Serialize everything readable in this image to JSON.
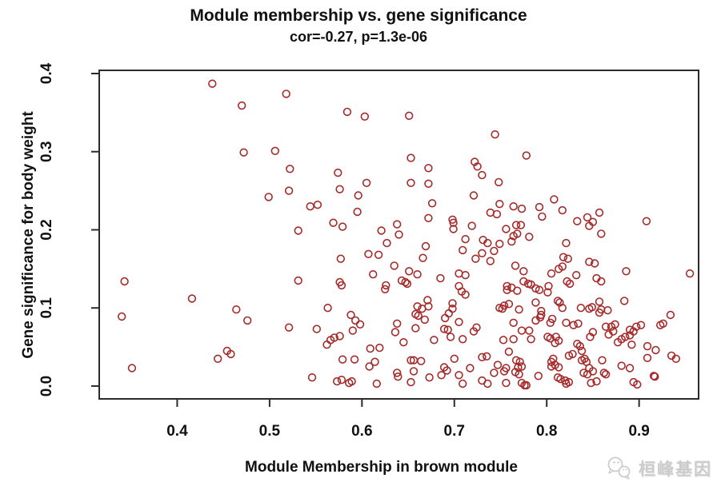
{
  "chart_data": {
    "type": "scatter",
    "title": "Module membership vs. gene significance",
    "subtitle": "cor=-0.27, p=1.3e-06",
    "xlabel": "Module Membership in brown module",
    "ylabel": "Gene significance for body weight",
    "x_ticks": [
      "0.4",
      "0.5",
      "0.6",
      "0.7",
      "0.8",
      "0.9"
    ],
    "y_ticks": [
      "0.0",
      "0.1",
      "0.2",
      "0.3",
      "0.4"
    ],
    "x_tick_values": [
      0.4,
      0.5,
      0.6,
      0.7,
      0.8,
      0.9
    ],
    "y_tick_values": [
      0.0,
      0.1,
      0.2,
      0.3,
      0.4
    ],
    "xlim": [
      0.3156,
      0.9644
    ],
    "ylim": [
      -0.0164,
      0.4041
    ],
    "grid": false,
    "legend": "none",
    "point_color": "#A52A2A",
    "axis_color": "#2b2b2b",
    "points": [
      [
        0.438,
        0.387
      ],
      [
        0.518,
        0.374
      ],
      [
        0.47,
        0.359
      ],
      [
        0.472,
        0.299
      ],
      [
        0.506,
        0.301
      ],
      [
        0.522,
        0.278
      ],
      [
        0.584,
        0.351
      ],
      [
        0.603,
        0.345
      ],
      [
        0.651,
        0.346
      ],
      [
        0.744,
        0.322
      ],
      [
        0.653,
        0.292
      ],
      [
        0.672,
        0.279
      ],
      [
        0.574,
        0.273
      ],
      [
        0.722,
        0.287
      ],
      [
        0.725,
        0.281
      ],
      [
        0.73,
        0.27
      ],
      [
        0.778,
        0.295
      ],
      [
        0.499,
        0.242
      ],
      [
        0.521,
        0.25
      ],
      [
        0.531,
        0.199
      ],
      [
        0.343,
        0.134
      ],
      [
        0.531,
        0.135
      ],
      [
        0.605,
        0.26
      ],
      [
        0.653,
        0.26
      ],
      [
        0.672,
        0.259
      ],
      [
        0.576,
        0.252
      ],
      [
        0.596,
        0.244
      ],
      [
        0.721,
        0.244
      ],
      [
        0.544,
        0.23
      ],
      [
        0.552,
        0.232
      ],
      [
        0.676,
        0.234
      ],
      [
        0.739,
        0.222
      ],
      [
        0.746,
        0.22
      ],
      [
        0.595,
        0.223
      ],
      [
        0.569,
        0.209
      ],
      [
        0.579,
        0.204
      ],
      [
        0.672,
        0.215
      ],
      [
        0.698,
        0.213
      ],
      [
        0.699,
        0.209
      ],
      [
        0.699,
        0.201
      ],
      [
        0.719,
        0.205
      ],
      [
        0.621,
        0.199
      ],
      [
        0.638,
        0.207
      ],
      [
        0.64,
        0.194
      ],
      [
        0.712,
        0.188
      ],
      [
        0.731,
        0.187
      ],
      [
        0.736,
        0.183
      ],
      [
        0.627,
        0.183
      ],
      [
        0.669,
        0.179
      ],
      [
        0.709,
        0.174
      ],
      [
        0.743,
        0.173
      ],
      [
        0.607,
        0.169
      ],
      [
        0.618,
        0.168
      ],
      [
        0.723,
        0.163
      ],
      [
        0.73,
        0.17
      ],
      [
        0.577,
        0.163
      ],
      [
        0.666,
        0.164
      ],
      [
        0.635,
        0.154
      ],
      [
        0.739,
        0.16
      ],
      [
        0.651,
        0.147
      ],
      [
        0.66,
        0.143
      ],
      [
        0.612,
        0.143
      ],
      [
        0.685,
        0.138
      ],
      [
        0.705,
        0.144
      ],
      [
        0.712,
        0.142
      ],
      [
        0.643,
        0.135
      ],
      [
        0.647,
        0.133
      ],
      [
        0.649,
        0.131
      ],
      [
        0.576,
        0.133
      ],
      [
        0.578,
        0.129
      ],
      [
        0.626,
        0.129
      ],
      [
        0.705,
        0.128
      ],
      [
        0.748,
        0.261
      ],
      [
        0.808,
        0.239
      ],
      [
        0.764,
        0.23
      ],
      [
        0.773,
        0.227
      ],
      [
        0.792,
        0.229
      ],
      [
        0.795,
        0.217
      ],
      [
        0.817,
        0.225
      ],
      [
        0.749,
        0.233
      ],
      [
        0.857,
        0.222
      ],
      [
        0.844,
        0.216
      ],
      [
        0.85,
        0.21
      ],
      [
        0.846,
        0.205
      ],
      [
        0.833,
        0.211
      ],
      [
        0.908,
        0.211
      ],
      [
        0.767,
        0.206
      ],
      [
        0.772,
        0.206
      ],
      [
        0.756,
        0.201
      ],
      [
        0.764,
        0.192
      ],
      [
        0.768,
        0.195
      ],
      [
        0.781,
        0.191
      ],
      [
        0.859,
        0.195
      ],
      [
        0.762,
        0.185
      ],
      [
        0.749,
        0.182
      ],
      [
        0.821,
        0.183
      ],
      [
        0.818,
        0.165
      ],
      [
        0.823,
        0.163
      ],
      [
        0.817,
        0.153
      ],
      [
        0.846,
        0.159
      ],
      [
        0.852,
        0.157
      ],
      [
        0.766,
        0.154
      ],
      [
        0.775,
        0.147
      ],
      [
        0.805,
        0.144
      ],
      [
        0.813,
        0.15
      ],
      [
        0.886,
        0.147
      ],
      [
        0.832,
        0.142
      ],
      [
        0.854,
        0.138
      ],
      [
        0.859,
        0.134
      ],
      [
        0.822,
        0.134
      ],
      [
        0.825,
        0.131
      ],
      [
        0.775,
        0.134
      ],
      [
        0.78,
        0.131
      ],
      [
        0.783,
        0.13
      ],
      [
        0.757,
        0.128
      ],
      [
        0.762,
        0.126
      ],
      [
        0.788,
        0.125
      ],
      [
        0.802,
        0.128
      ],
      [
        0.955,
        0.144
      ],
      [
        0.416,
        0.112
      ],
      [
        0.34,
        0.089
      ],
      [
        0.464,
        0.098
      ],
      [
        0.476,
        0.084
      ],
      [
        0.521,
        0.075
      ],
      [
        0.454,
        0.045
      ],
      [
        0.458,
        0.041
      ],
      [
        0.444,
        0.035
      ],
      [
        0.351,
        0.023
      ],
      [
        0.563,
        0.1
      ],
      [
        0.588,
        0.091
      ],
      [
        0.593,
        0.084
      ],
      [
        0.598,
        0.079
      ],
      [
        0.59,
        0.071
      ],
      [
        0.551,
        0.073
      ],
      [
        0.566,
        0.059
      ],
      [
        0.57,
        0.062
      ],
      [
        0.576,
        0.064
      ],
      [
        0.562,
        0.053
      ],
      [
        0.66,
        0.102
      ],
      [
        0.665,
        0.099
      ],
      [
        0.671,
        0.11
      ],
      [
        0.672,
        0.102
      ],
      [
        0.658,
        0.092
      ],
      [
        0.661,
        0.09
      ],
      [
        0.668,
        0.085
      ],
      [
        0.658,
        0.074
      ],
      [
        0.638,
        0.08
      ],
      [
        0.636,
        0.069
      ],
      [
        0.645,
        0.056
      ],
      [
        0.69,
        0.087
      ],
      [
        0.694,
        0.093
      ],
      [
        0.698,
        0.106
      ],
      [
        0.698,
        0.099
      ],
      [
        0.705,
        0.082
      ],
      [
        0.689,
        0.073
      ],
      [
        0.693,
        0.072
      ],
      [
        0.696,
        0.063
      ],
      [
        0.709,
        0.06
      ],
      [
        0.721,
        0.07
      ],
      [
        0.724,
        0.075
      ],
      [
        0.708,
        0.121
      ],
      [
        0.712,
        0.117
      ],
      [
        0.625,
        0.124
      ],
      [
        0.678,
        0.059
      ],
      [
        0.609,
        0.048
      ],
      [
        0.619,
        0.049
      ],
      [
        0.579,
        0.034
      ],
      [
        0.592,
        0.034
      ],
      [
        0.608,
        0.025
      ],
      [
        0.614,
        0.031
      ],
      [
        0.616,
        0.003
      ],
      [
        0.653,
        0.033
      ],
      [
        0.656,
        0.033
      ],
      [
        0.664,
        0.032
      ],
      [
        0.656,
        0.019
      ],
      [
        0.653,
        0.005
      ],
      [
        0.638,
        0.017
      ],
      [
        0.639,
        0.012
      ],
      [
        0.673,
        0.011
      ],
      [
        0.686,
        0.014
      ],
      [
        0.689,
        0.024
      ],
      [
        0.692,
        0.02
      ],
      [
        0.7,
        0.035
      ],
      [
        0.705,
        0.014
      ],
      [
        0.709,
        0.003
      ],
      [
        0.717,
        0.023
      ],
      [
        0.73,
        0.037
      ],
      [
        0.735,
        0.038
      ],
      [
        0.73,
        0.007
      ],
      [
        0.736,
        0.003
      ],
      [
        0.743,
        0.017
      ],
      [
        0.747,
        0.027
      ],
      [
        0.546,
        0.011
      ],
      [
        0.573,
        0.006
      ],
      [
        0.578,
        0.008
      ],
      [
        0.586,
        0.004
      ],
      [
        0.589,
        0.006
      ],
      [
        0.757,
        0.123
      ],
      [
        0.768,
        0.122
      ],
      [
        0.792,
        0.123
      ],
      [
        0.801,
        0.12
      ],
      [
        0.754,
        0.103
      ],
      [
        0.759,
        0.105
      ],
      [
        0.752,
        0.099
      ],
      [
        0.749,
        0.1
      ],
      [
        0.77,
        0.098
      ],
      [
        0.788,
        0.107
      ],
      [
        0.812,
        0.109
      ],
      [
        0.814,
        0.107
      ],
      [
        0.817,
        0.1
      ],
      [
        0.794,
        0.096
      ],
      [
        0.794,
        0.091
      ],
      [
        0.793,
        0.088
      ],
      [
        0.837,
        0.1
      ],
      [
        0.846,
        0.099
      ],
      [
        0.849,
        0.101
      ],
      [
        0.857,
        0.108
      ],
      [
        0.859,
        0.098
      ],
      [
        0.857,
        0.094
      ],
      [
        0.866,
        0.097
      ],
      [
        0.884,
        0.109
      ],
      [
        0.934,
        0.091
      ],
      [
        0.926,
        0.08
      ],
      [
        0.923,
        0.078
      ],
      [
        0.764,
        0.081
      ],
      [
        0.773,
        0.071
      ],
      [
        0.781,
        0.071
      ],
      [
        0.788,
        0.084
      ],
      [
        0.806,
        0.086
      ],
      [
        0.804,
        0.081
      ],
      [
        0.821,
        0.081
      ],
      [
        0.829,
        0.078
      ],
      [
        0.834,
        0.08
      ],
      [
        0.783,
        0.06
      ],
      [
        0.764,
        0.06
      ],
      [
        0.753,
        0.059
      ],
      [
        0.801,
        0.063
      ],
      [
        0.804,
        0.061
      ],
      [
        0.81,
        0.063
      ],
      [
        0.813,
        0.058
      ],
      [
        0.809,
        0.055
      ],
      [
        0.85,
        0.069
      ],
      [
        0.847,
        0.063
      ],
      [
        0.864,
        0.076
      ],
      [
        0.87,
        0.076
      ],
      [
        0.874,
        0.079
      ],
      [
        0.872,
        0.07
      ],
      [
        0.867,
        0.066
      ],
      [
        0.877,
        0.056
      ],
      [
        0.881,
        0.06
      ],
      [
        0.885,
        0.063
      ],
      [
        0.89,
        0.065
      ],
      [
        0.89,
        0.072
      ],
      [
        0.894,
        0.07
      ],
      [
        0.892,
        0.053
      ],
      [
        0.902,
        0.078
      ],
      [
        0.897,
        0.076
      ],
      [
        0.935,
        0.039
      ],
      [
        0.94,
        0.035
      ],
      [
        0.909,
        0.051
      ],
      [
        0.918,
        0.046
      ],
      [
        0.909,
        0.036
      ],
      [
        0.916,
        0.013
      ],
      [
        0.759,
        0.044
      ],
      [
        0.756,
        0.023
      ],
      [
        0.754,
        0.019
      ],
      [
        0.767,
        0.033
      ],
      [
        0.771,
        0.031
      ],
      [
        0.773,
        0.025
      ],
      [
        0.769,
        0.024
      ],
      [
        0.766,
        0.018
      ],
      [
        0.77,
        0.015
      ],
      [
        0.791,
        0.013
      ],
      [
        0.773,
        0.004
      ],
      [
        0.776,
        0.001
      ],
      [
        0.778,
        0.001
      ],
      [
        0.756,
        0.004
      ],
      [
        0.807,
        0.035
      ],
      [
        0.805,
        0.031
      ],
      [
        0.809,
        0.027
      ],
      [
        0.805,
        0.025
      ],
      [
        0.813,
        0.024
      ],
      [
        0.812,
        0.011
      ],
      [
        0.815,
        0.009
      ],
      [
        0.82,
        0.007
      ],
      [
        0.821,
        0.003
      ],
      [
        0.824,
        0.005
      ],
      [
        0.838,
        0.033
      ],
      [
        0.841,
        0.035
      ],
      [
        0.843,
        0.031
      ],
      [
        0.836,
        0.051
      ],
      [
        0.838,
        0.045
      ],
      [
        0.833,
        0.054
      ],
      [
        0.828,
        0.041
      ],
      [
        0.824,
        0.039
      ],
      [
        0.846,
        0.023
      ],
      [
        0.85,
        0.019
      ],
      [
        0.844,
        0.015
      ],
      [
        0.84,
        0.017
      ],
      [
        0.854,
        0.006
      ],
      [
        0.848,
        0.004
      ],
      [
        0.862,
        0.017
      ],
      [
        0.864,
        0.015
      ],
      [
        0.86,
        0.033
      ],
      [
        0.881,
        0.026
      ],
      [
        0.89,
        0.023
      ],
      [
        0.894,
        0.005
      ],
      [
        0.898,
        0.002
      ],
      [
        0.917,
        0.012
      ]
    ]
  },
  "watermark": {
    "text": "桓峰基因",
    "icon": "chat-bubbles-icon",
    "color": "#cccccc"
  }
}
